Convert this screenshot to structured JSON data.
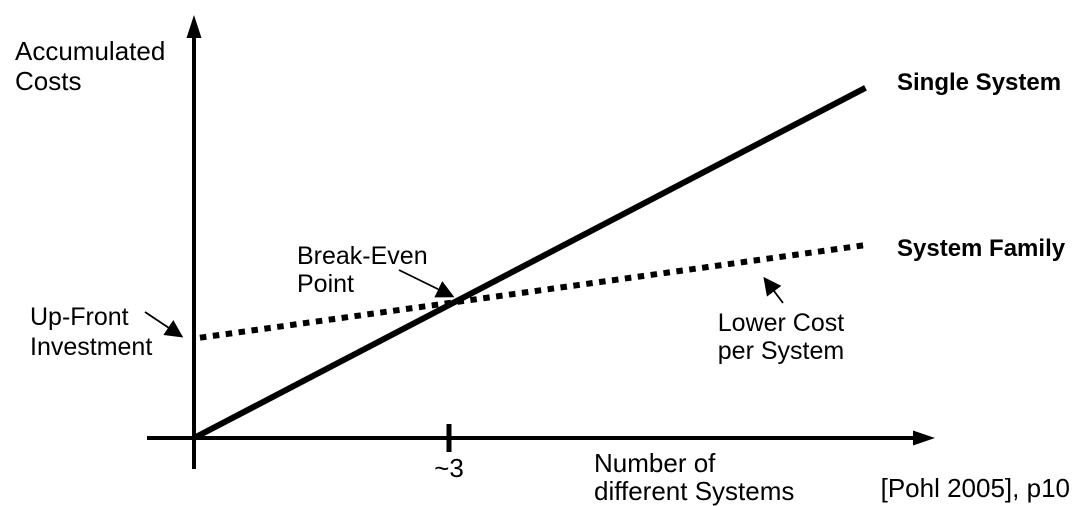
{
  "chart_data": {
    "type": "line",
    "ylabel": "Accumulated Costs",
    "xlabel": "Number of different Systems",
    "x_axis_numeric": false,
    "grid": false,
    "x_ticks": [
      {
        "x": 3,
        "label": "~3"
      }
    ],
    "series": [
      {
        "name": "Single System",
        "line_style": "solid",
        "points": [
          [
            0,
            0
          ],
          [
            7.9,
            4.12
          ]
        ]
      },
      {
        "name": "System Family",
        "line_style": "dotted",
        "points": [
          [
            0.07,
            1.18
          ],
          [
            7.9,
            2.27
          ]
        ]
      }
    ],
    "break_even": {
      "x": 3,
      "y": 1.59
    },
    "annotations": [
      {
        "text": "Break-Even Point",
        "points_to": "intersection of the two lines"
      },
      {
        "text": "Up-Front Investment",
        "points_to": "System Family start value on cost axis"
      },
      {
        "text": "Lower Cost per System",
        "points_to": "System Family line"
      }
    ],
    "source": "[Pohl 2005], p10"
  },
  "labels": {
    "y_axis_line1": "Accumulated",
    "y_axis_line2": "Costs",
    "x_axis_line1": "Number of",
    "x_axis_line2": "different Systems",
    "break_even_line1": "Break-Even",
    "break_even_line2": "Point",
    "up_front_line1": "Up-Front",
    "up_front_line2": "Investment",
    "lower_cost_line1": "Lower Cost",
    "lower_cost_line2": "per System",
    "citation": "[Pohl 2005], p10"
  },
  "colors": {
    "ink": "#000000",
    "background": "#ffffff"
  }
}
